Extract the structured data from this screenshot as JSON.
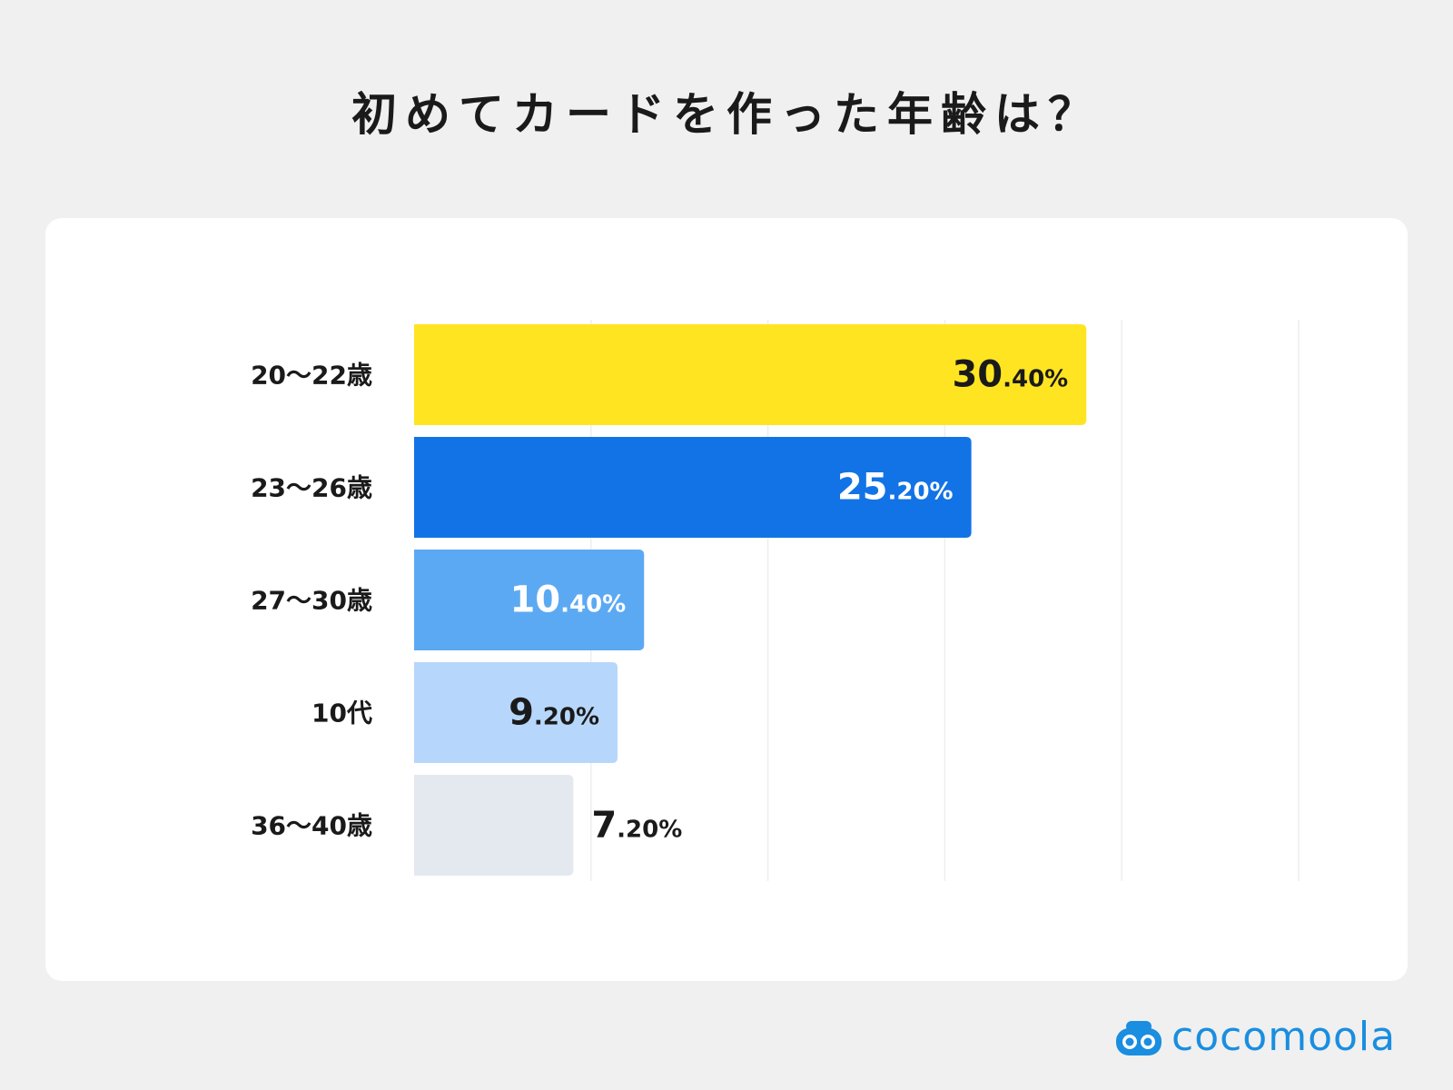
{
  "chart_data": {
    "type": "bar",
    "orientation": "horizontal",
    "title": "初めてカードを作った年齢は？",
    "categories": [
      "20〜22歳",
      "23〜26歳",
      "27〜30歳",
      "10代",
      "36〜40歳"
    ],
    "values": [
      30.4,
      25.2,
      10.4,
      9.2,
      7.2
    ],
    "value_labels": [
      {
        "int": "30",
        "dec": ".40%"
      },
      {
        "int": "25",
        "dec": ".20%"
      },
      {
        "int": "10",
        "dec": ".40%"
      },
      {
        "int": "9",
        "dec": ".20%"
      },
      {
        "int": "7",
        "dec": ".20%"
      }
    ],
    "colors": [
      "#ffe521",
      "#1273e6",
      "#5ca9f3",
      "#b7d6fb",
      "#e4e8ef"
    ],
    "label_colors": [
      "#1a1a1a",
      "#ffffff",
      "#ffffff",
      "#1a1a1a",
      "#1a1a1a"
    ],
    "xlim": [
      0,
      40
    ],
    "grid": true
  },
  "brand": {
    "name": "cocomoola",
    "color": "#1a8ee0"
  }
}
